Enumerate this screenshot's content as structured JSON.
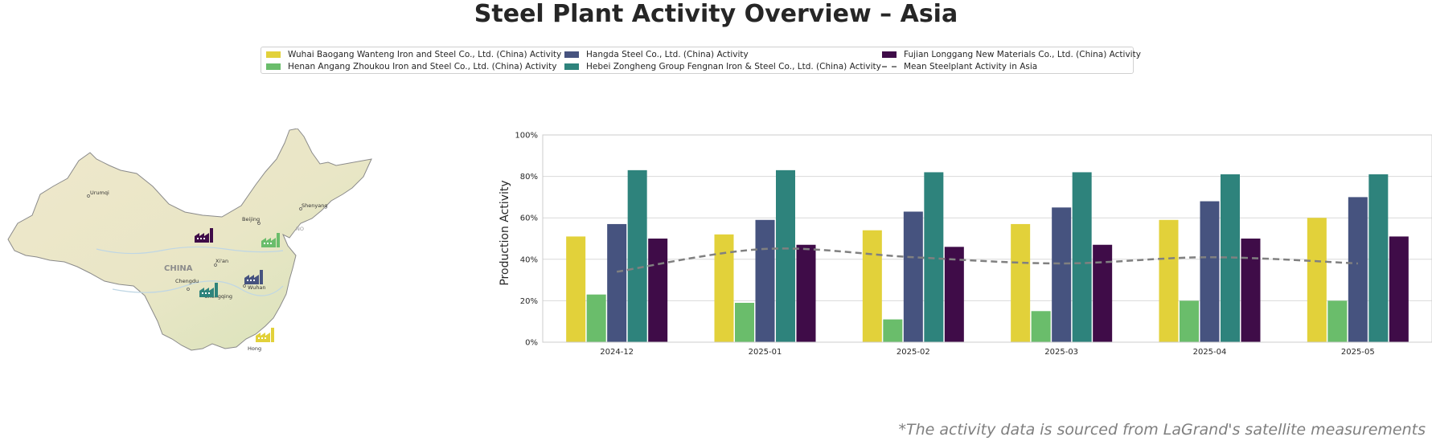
{
  "title": "Steel Plant Activity Overview – Asia",
  "footnote": "*The activity data is sourced from LaGrand's satellite measurements",
  "legend": [
    {
      "label": "Wuhai Baogang Wanteng Iron and Steel Co., Ltd. (China) Activity",
      "color": "#e2d13a",
      "kind": "bar"
    },
    {
      "label": "Henan Angang Zhoukou Iron and Steel Co., Ltd. (China) Activity",
      "color": "#6abd6b",
      "kind": "bar"
    },
    {
      "label": "Hangda Steel Co., Ltd. (China) Activity",
      "color": "#46537f",
      "kind": "bar"
    },
    {
      "label": "Hebei Zongheng Group Fengnan Iron & Steel Co., Ltd. (China) Activity",
      "color": "#2e837c",
      "kind": "bar"
    },
    {
      "label": "Fujian Longgang New Materials Co., Ltd. (China) Activity",
      "color": "#3f0c48",
      "kind": "bar"
    },
    {
      "label": "Mean Steelplant Activity in Asia",
      "color": "#808080",
      "kind": "dashed-line"
    }
  ],
  "map": {
    "country_label": "CHINA",
    "cities": [
      "Urumqi",
      "Beijing",
      "Shenyang",
      "Xi'an",
      "Chengdu",
      "Chongqing",
      "Wuhan",
      "Hong"
    ],
    "edge_label": "NO",
    "plant_markers": [
      {
        "name": "Fujian Longgang New Materials Co., Ltd.",
        "color": "#3f0c48"
      },
      {
        "name": "Henan Angang Zhoukou Iron and Steel Co., Ltd.",
        "color": "#6abd6b"
      },
      {
        "name": "Hangda Steel Co., Ltd.",
        "color": "#46537f"
      },
      {
        "name": "Hebei Zongheng Group Fengnan Iron & Steel Co., Ltd.",
        "color": "#2e837c"
      },
      {
        "name": "Wuhai Baogang Wanteng Iron and Steel Co., Ltd.",
        "color": "#e2d13a"
      }
    ]
  },
  "chart_data": {
    "type": "bar",
    "ylabel": "Production Activity",
    "xlabel": "",
    "ylim": [
      0,
      100
    ],
    "yticks": [
      0,
      20,
      40,
      60,
      80,
      100
    ],
    "ytick_labels": [
      "0%",
      "20%",
      "40%",
      "60%",
      "80%",
      "100%"
    ],
    "grid": true,
    "categories": [
      "2024-12",
      "2025-01",
      "2025-02",
      "2025-03",
      "2025-04",
      "2025-05"
    ],
    "series": [
      {
        "name": "Wuhai Baogang Wanteng Iron and Steel Co., Ltd. (China) Activity",
        "color": "#e2d13a",
        "values": [
          51,
          52,
          54,
          57,
          59,
          60
        ]
      },
      {
        "name": "Henan Angang Zhoukou Iron and Steel Co., Ltd. (China) Activity",
        "color": "#6abd6b",
        "values": [
          23,
          19,
          11,
          15,
          20,
          20
        ]
      },
      {
        "name": "Hangda Steel Co., Ltd. (China) Activity",
        "color": "#46537f",
        "values": [
          57,
          59,
          63,
          65,
          68,
          70
        ]
      },
      {
        "name": "Hebei Zongheng Group Fengnan Iron & Steel Co., Ltd. (China) Activity",
        "color": "#2e837c",
        "values": [
          83,
          83,
          82,
          82,
          81,
          81
        ]
      },
      {
        "name": "Fujian Longgang New Materials Co., Ltd. (China) Activity",
        "color": "#3f0c48",
        "values": [
          50,
          47,
          46,
          47,
          50,
          51
        ]
      }
    ],
    "line_series": {
      "name": "Mean Steelplant Activity in Asia",
      "color": "#808080",
      "style": "dashed",
      "values": [
        34,
        45,
        41,
        38,
        41,
        38
      ]
    }
  }
}
